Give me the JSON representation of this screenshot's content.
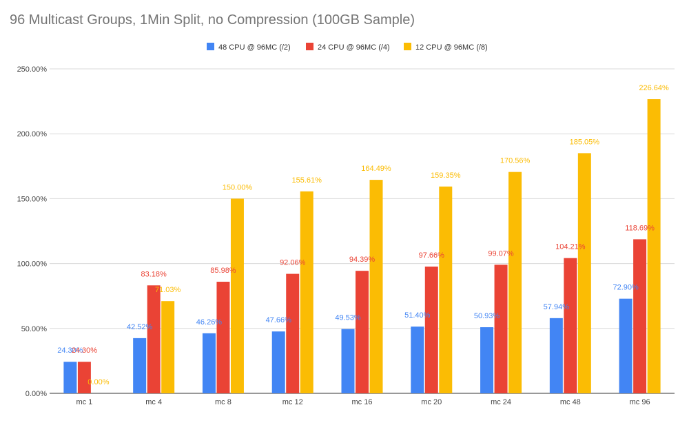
{
  "chart_data": {
    "type": "bar",
    "title": "96 Multicast Groups, 1Min Split,  no Compression (100GB Sample)",
    "xlabel": "",
    "ylabel": "",
    "ylim": [
      0,
      250
    ],
    "y_ticks": [
      0,
      50,
      100,
      150,
      200,
      250
    ],
    "y_tick_labels": [
      "0.00%",
      "50.00%",
      "100.00%",
      "150.00%",
      "200.00%",
      "250.00%"
    ],
    "grid": true,
    "legend_position": "top-center",
    "categories": [
      "mc 1",
      "mc 4",
      "mc 8",
      "mc 12",
      "mc 16",
      "mc 20",
      "mc 24",
      "mc 48",
      "mc 96"
    ],
    "series": [
      {
        "name": "48 CPU @ 96MC (/2)",
        "color": "#4285f4",
        "values": [
          24.3,
          42.52,
          46.26,
          47.66,
          49.53,
          51.4,
          50.93,
          57.94,
          72.9
        ],
        "labels": [
          "24.30%",
          "42.52%",
          "46.26%",
          "47.66%",
          "49.53%",
          "51.40%",
          "50.93%",
          "57.94%",
          "72.90%"
        ]
      },
      {
        "name": "24 CPU @ 96MC (/4)",
        "color": "#ea4335",
        "values": [
          24.3,
          83.18,
          85.98,
          92.06,
          94.39,
          97.66,
          99.07,
          104.21,
          118.69
        ],
        "labels": [
          "24.30%",
          "83.18%",
          "85.98%",
          "92.06%",
          "94.39%",
          "97.66%",
          "99.07%",
          "104.21%",
          "118.69%"
        ]
      },
      {
        "name": "12 CPU @ 96MC (/8)",
        "color": "#fbbc04",
        "values": [
          0,
          71.03,
          150.0,
          155.61,
          164.49,
          159.35,
          170.56,
          185.05,
          226.64
        ],
        "labels": [
          "0.00%",
          "71.03%",
          "150.00%",
          "155.61%",
          "164.49%",
          "159.35%",
          "170.56%",
          "185.05%",
          "226.64%"
        ]
      }
    ]
  }
}
